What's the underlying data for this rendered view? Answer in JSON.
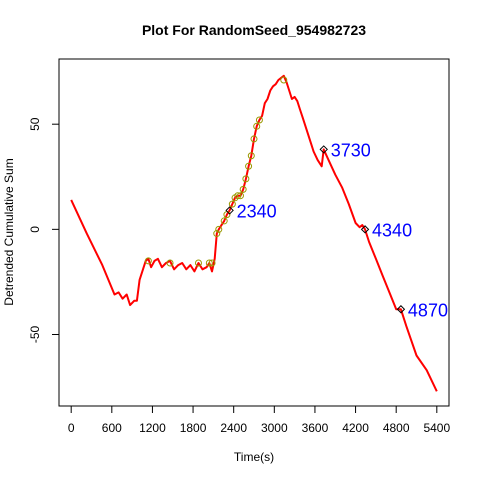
{
  "chart_data": {
    "type": "line",
    "title": "Plot For RandomSeed_954982723",
    "xlabel": "Time(s)",
    "ylabel": "Detrended Cumulative Sum",
    "xlim": [
      -180,
      5580
    ],
    "ylim": [
      -84,
      81
    ],
    "x_ticks": [
      0,
      600,
      1200,
      1800,
      2400,
      3000,
      3600,
      4200,
      4800,
      5400
    ],
    "x_tick_labels": [
      "0",
      "600",
      "1200",
      "1800",
      "2400",
      "3000",
      "3600",
      "4200",
      "4800",
      "5400"
    ],
    "y_ticks": [
      -50,
      0,
      50
    ],
    "y_tick_labels": [
      "-50",
      "0",
      "50"
    ],
    "grid": false,
    "colors": {
      "line": "#ff0000",
      "circle_marker": "#999900",
      "diamond_marker": "#000000",
      "annotation": "#0000ff"
    },
    "series": [
      {
        "values_x": [
          0,
          230,
          460,
          640,
          700,
          760,
          820,
          870,
          930,
          970,
          1010,
          1060,
          1100,
          1140,
          1180,
          1230,
          1280,
          1340,
          1400,
          1460,
          1520,
          1580,
          1640,
          1700,
          1760,
          1820,
          1880,
          1940,
          2000,
          2040,
          2080,
          2120,
          2150,
          2180,
          2220,
          2260,
          2300,
          2340,
          2380,
          2420,
          2460,
          2500,
          2540,
          2580,
          2620,
          2660,
          2700,
          2740,
          2780,
          2820,
          2860,
          2900,
          2940,
          2980,
          3020,
          3060,
          3100,
          3140,
          3180,
          3220,
          3260,
          3300,
          3340,
          3380,
          3420,
          3460,
          3500,
          3540,
          3580,
          3640,
          3700,
          3730,
          3800,
          3900,
          4000,
          4100,
          4200,
          4260,
          4300,
          4340,
          4400,
          4500,
          4600,
          4700,
          4800,
          4870,
          4950,
          5100,
          5250,
          5400
        ],
        "values_y": [
          14,
          -2,
          -17,
          -31,
          -30,
          -33,
          -31,
          -36,
          -34,
          -34,
          -24,
          -19,
          -15,
          -14,
          -18,
          -15,
          -14,
          -18,
          -16,
          -15,
          -19,
          -17,
          -16,
          -19,
          -17,
          -20,
          -16,
          -19,
          -18,
          -16,
          -20,
          -14,
          -2,
          0,
          2,
          4,
          7,
          9,
          12,
          15,
          16,
          16,
          19,
          24,
          30,
          35,
          43,
          49,
          52,
          54,
          60,
          62,
          66,
          68,
          69,
          71,
          72,
          73,
          70,
          66,
          62,
          63,
          61,
          57,
          53,
          49,
          45,
          41,
          37,
          33,
          30,
          38,
          33,
          26,
          20,
          12,
          3,
          1,
          2,
          0,
          -6,
          -14,
          -22,
          -30,
          -38,
          -38,
          -46,
          -60,
          -67,
          -77
        ]
      }
    ],
    "circle_markers": {
      "x": [
        1140,
        1460,
        1880,
        2040,
        2080,
        2150,
        2180,
        2260,
        2300,
        2380,
        2420,
        2460,
        2500,
        2540,
        2580,
        2620,
        2660,
        2700,
        2740,
        2780,
        3140
      ],
      "y": [
        -15,
        -16,
        -16,
        -16,
        -16,
        -2,
        0,
        4,
        7,
        12,
        15,
        16,
        16,
        19,
        24,
        30,
        35,
        43,
        49,
        52,
        71
      ]
    },
    "annotations": [
      {
        "x": 2340,
        "y": 9,
        "label": "2340"
      },
      {
        "x": 3730,
        "y": 38,
        "label": "3730"
      },
      {
        "x": 4340,
        "y": 0,
        "label": "4340"
      },
      {
        "x": 4870,
        "y": -38,
        "label": "4870"
      }
    ]
  }
}
